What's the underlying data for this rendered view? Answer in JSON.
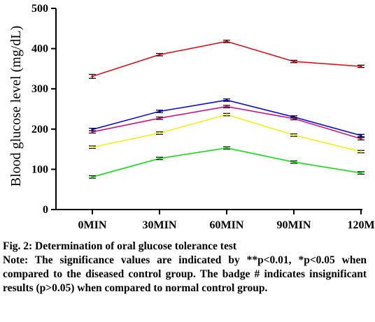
{
  "chart_data": {
    "type": "line",
    "title": "",
    "xlabel": "",
    "ylabel": "Blood glucose level (mg/dL)",
    "categories": [
      "0MIN",
      "30MIN",
      "60MIN",
      "90MIN",
      "120M"
    ],
    "ylim": [
      0,
      500
    ],
    "yticks": [
      0,
      100,
      200,
      300,
      400,
      500
    ],
    "grid": false,
    "legend": "none",
    "error_bars": true,
    "series": [
      {
        "color": "#e8000b",
        "values": [
          331,
          385,
          418,
          368,
          356
        ],
        "errors": [
          5,
          3,
          3,
          3,
          3
        ]
      },
      {
        "color": "#0000ee",
        "values": [
          199,
          244,
          272,
          230,
          184
        ],
        "errors": [
          3,
          3,
          3,
          3,
          3
        ]
      },
      {
        "color": "#d6007a",
        "values": [
          193,
          227,
          256,
          226,
          176
        ],
        "errors": [
          3,
          3,
          3,
          3,
          3
        ]
      },
      {
        "color": "#f2f200",
        "values": [
          155,
          190,
          236,
          185,
          144
        ],
        "errors": [
          3,
          3,
          3,
          3,
          3
        ]
      },
      {
        "color": "#00e000",
        "values": [
          81,
          127,
          153,
          118,
          91
        ],
        "errors": [
          3,
          3,
          3,
          3,
          3
        ]
      }
    ]
  },
  "caption": {
    "heading": "Fig. 2: Determination of oral glucose tolerance test",
    "note": "Note: The significance values are indicated by **p<0.01, *p<0.05 when compared to the diseased control group. The badge # indicates insignificant results (p>0.05) when compared to normal control group."
  }
}
